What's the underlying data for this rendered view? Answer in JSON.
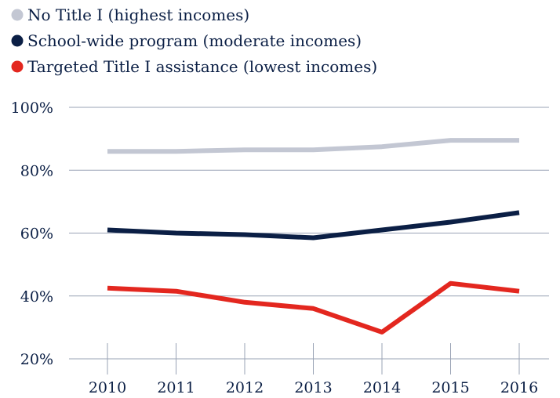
{
  "chart_data": {
    "type": "line",
    "x": [
      "2010",
      "2011",
      "2012",
      "2013",
      "2014",
      "2015",
      "2016"
    ],
    "series": [
      {
        "name": "No Title I (highest incomes)",
        "color": "#c3c7d3",
        "values": [
          86,
          86,
          86.5,
          86.5,
          87.5,
          89.5,
          89.5
        ]
      },
      {
        "name": "School-wide program (moderate incomes)",
        "color": "#0b1f45",
        "values": [
          61,
          60,
          59.5,
          58.5,
          61,
          63.5,
          66.5
        ]
      },
      {
        "name": "Targeted Title I assistance (lowest incomes)",
        "color": "#e3271f",
        "values": [
          42.5,
          41.5,
          38,
          36,
          28.5,
          44,
          41.5
        ]
      }
    ],
    "yticks": [
      "20%",
      "40%",
      "60%",
      "80%",
      "100%"
    ],
    "ylim": [
      20,
      100
    ],
    "grid": true,
    "legend": "top-left"
  }
}
